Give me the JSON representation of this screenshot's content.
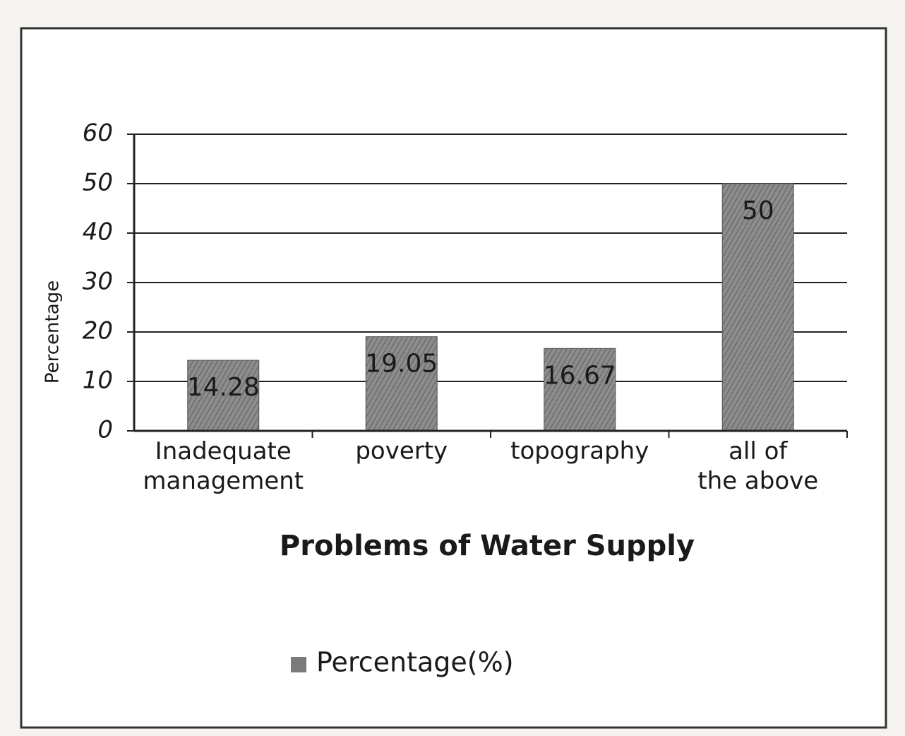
{
  "chart_data": {
    "type": "bar",
    "x_label": "Problems of Water Supply",
    "y_label": "Percentage",
    "categories": [
      "Inadequate management",
      "poverty",
      "topography",
      "all of the above"
    ],
    "series": [
      {
        "name": "Percentage(%)",
        "color": "#7a7a7a",
        "values": [
          14.28,
          19.05,
          16.67,
          50
        ]
      }
    ],
    "ylim": [
      0,
      60
    ],
    "yticks": [
      0,
      10,
      20,
      30,
      40,
      50,
      60
    ],
    "grid": true,
    "legend": "bottom"
  }
}
